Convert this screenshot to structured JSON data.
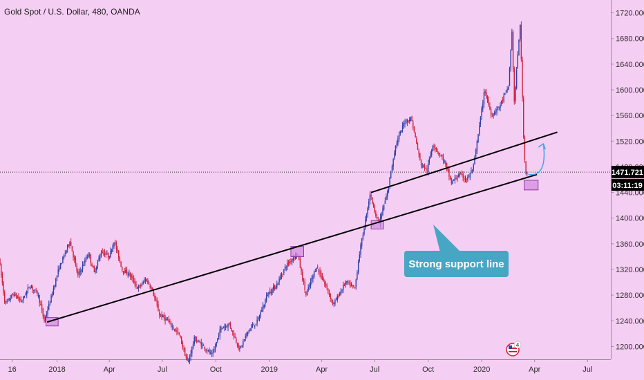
{
  "header": {
    "title": "Gold Spot / U.S. Dollar, 480, OANDA"
  },
  "colors": {
    "background": "#f5cef3",
    "candle_up": "#2b3fa8",
    "candle_down": "#d0213a",
    "trendline": "#000000",
    "highlight_fill": "#d58ee0",
    "highlight_stroke": "#8a3aa0",
    "callout": "#47a6c4",
    "arrow": "#3ea6e8",
    "price_tag": "#000000"
  },
  "annotations": {
    "callout_text": "Strong support line",
    "current_price": "1471.721",
    "countdown": "03:11:19",
    "badge_count": "4"
  },
  "chart_data": {
    "type": "line",
    "title": "Gold Spot / U.S. Dollar, 480, OANDA",
    "xlabel": "",
    "ylabel": "",
    "grid": false,
    "x_ticks": [
      "16",
      "2018",
      "Apr",
      "Jul",
      "Oct",
      "2019",
      "Apr",
      "Jul",
      "Oct",
      "2020",
      "Apr",
      "Jul"
    ],
    "y_ticks": [
      "1200.000",
      "1240.000",
      "1280.000",
      "1320.000",
      "1360.000",
      "1400.000",
      "1440.000",
      "1480.000",
      "1520.000",
      "1560.000",
      "1600.000",
      "1640.000",
      "1680.000",
      "1720.000"
    ],
    "ylim": [
      1180,
      1740
    ],
    "xlim": [
      "2017-09-25",
      "2020-08-10"
    ],
    "series": [
      {
        "values": [
          [
            "2017-09-25",
            1338
          ],
          [
            "2017-10-06",
            1265
          ],
          [
            "2017-10-20",
            1282
          ],
          [
            "2017-11-03",
            1270
          ],
          [
            "2017-11-17",
            1295
          ],
          [
            "2017-12-01",
            1282
          ],
          [
            "2017-12-12",
            1240
          ],
          [
            "2017-12-22",
            1270
          ],
          [
            "2018-01-05",
            1318
          ],
          [
            "2018-01-25",
            1365
          ],
          [
            "2018-02-08",
            1310
          ],
          [
            "2018-02-26",
            1345
          ],
          [
            "2018-03-08",
            1315
          ],
          [
            "2018-03-20",
            1348
          ],
          [
            "2018-04-03",
            1340
          ],
          [
            "2018-04-11",
            1365
          ],
          [
            "2018-04-25",
            1320
          ],
          [
            "2018-05-08",
            1312
          ],
          [
            "2018-05-22",
            1290
          ],
          [
            "2018-06-05",
            1305
          ],
          [
            "2018-06-15",
            1290
          ],
          [
            "2018-06-28",
            1250
          ],
          [
            "2018-07-12",
            1240
          ],
          [
            "2018-08-01",
            1218
          ],
          [
            "2018-08-16",
            1173
          ],
          [
            "2018-08-27",
            1212
          ],
          [
            "2018-09-12",
            1200
          ],
          [
            "2018-09-27",
            1185
          ],
          [
            "2018-10-11",
            1228
          ],
          [
            "2018-10-26",
            1235
          ],
          [
            "2018-11-13",
            1195
          ],
          [
            "2018-11-28",
            1225
          ],
          [
            "2018-12-14",
            1240
          ],
          [
            "2018-12-31",
            1282
          ],
          [
            "2019-01-15",
            1295
          ],
          [
            "2019-01-31",
            1325
          ],
          [
            "2019-02-20",
            1346
          ],
          [
            "2019-03-07",
            1280
          ],
          [
            "2019-03-25",
            1325
          ],
          [
            "2019-04-12",
            1290
          ],
          [
            "2019-04-23",
            1265
          ],
          [
            "2019-05-14",
            1300
          ],
          [
            "2019-05-30",
            1290
          ],
          [
            "2019-06-06",
            1340
          ],
          [
            "2019-06-25",
            1438
          ],
          [
            "2019-07-10",
            1390
          ],
          [
            "2019-07-25",
            1440
          ],
          [
            "2019-08-07",
            1510
          ],
          [
            "2019-08-23",
            1550
          ],
          [
            "2019-09-04",
            1556
          ],
          [
            "2019-09-20",
            1485
          ],
          [
            "2019-10-01",
            1475
          ],
          [
            "2019-10-11",
            1515
          ],
          [
            "2019-10-30",
            1490
          ],
          [
            "2019-11-12",
            1455
          ],
          [
            "2019-11-25",
            1468
          ],
          [
            "2019-12-09",
            1460
          ],
          [
            "2019-12-20",
            1480
          ],
          [
            "2020-01-08",
            1600
          ],
          [
            "2020-01-20",
            1560
          ],
          [
            "2020-02-03",
            1575
          ],
          [
            "2020-02-18",
            1605
          ],
          [
            "2020-02-24",
            1690
          ],
          [
            "2020-02-28",
            1580
          ],
          [
            "2020-03-09",
            1703
          ],
          [
            "2020-03-16",
            1500
          ],
          [
            "2020-03-19",
            1471.721
          ]
        ]
      }
    ],
    "trendlines": [
      {
        "start": [
          "2017-12-15",
          1238
        ],
        "end": [
          "2020-04-05",
          1468
        ]
      },
      {
        "start": [
          "2019-06-25",
          1440
        ],
        "end": [
          "2020-05-10",
          1534
        ]
      }
    ],
    "highlight_boxes": [
      [
        "2017-12-13",
        1245,
        "2018-01-03",
        1232
      ],
      [
        "2019-02-07",
        1356,
        "2019-03-01",
        1340
      ],
      [
        "2019-06-25",
        1396,
        "2019-07-16",
        1383
      ],
      [
        "2020-03-14",
        1459,
        "2020-04-07",
        1444
      ]
    ],
    "projection_arrow": {
      "start": [
        "2020-03-21",
        1468
      ],
      "end": [
        "2020-04-16",
        1516
      ]
    },
    "current_price": 1471.721,
    "countdown": "03:11:19"
  }
}
